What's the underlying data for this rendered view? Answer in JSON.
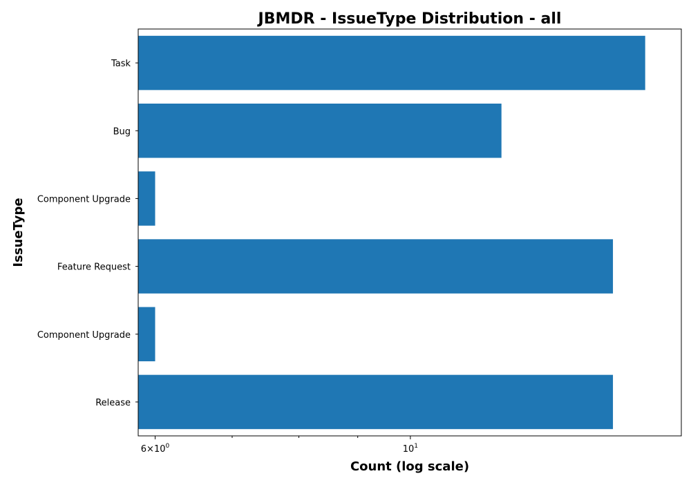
{
  "chart_data": {
    "type": "bar",
    "orientation": "horizontal",
    "title": "JBMDR - IssueType Distribution - all",
    "xlabel": "Count (log scale)",
    "ylabel": "IssueType",
    "xscale": "log",
    "xlim": [
      5.8,
      17.2
    ],
    "grid": false,
    "bar_color": "#1f77b4",
    "categories": [
      "Task",
      "Bug",
      "Component  Upgrade",
      "Feature Request",
      "Component Upgrade",
      "Release"
    ],
    "values": [
      16,
      12,
      6,
      15,
      6,
      15
    ],
    "xticks": [
      {
        "value": 6,
        "base": "6×10",
        "exponent": "0"
      },
      {
        "value": 10,
        "base": "10",
        "exponent": "1"
      }
    ],
    "minor_ticks": [
      7,
      8,
      9
    ]
  }
}
